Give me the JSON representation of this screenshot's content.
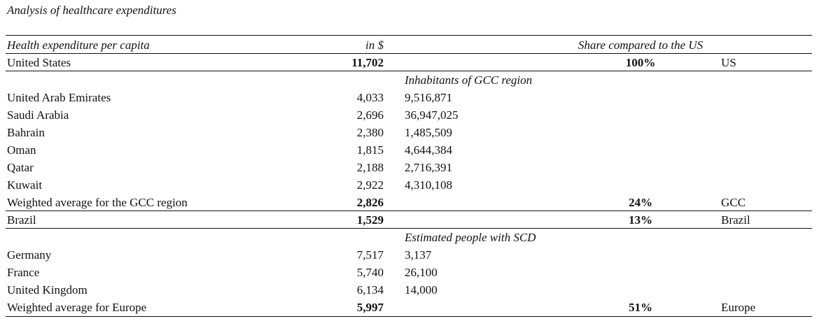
{
  "doc_title": "Analysis of healthcare expenditures",
  "header": {
    "col1": "Health expenditure per capita",
    "col2": "in $",
    "col4": "Share compared to the US"
  },
  "us": {
    "country": "United States",
    "value": "11,702",
    "share": "100%",
    "region": "US"
  },
  "gcc": {
    "subheader": "Inhabitants of GCC region",
    "rows": [
      {
        "country": "United Arab Emirates",
        "value": "4,033",
        "extra": "9,516,871"
      },
      {
        "country": "Saudi Arabia",
        "value": "2,696",
        "extra": "36,947,025"
      },
      {
        "country": "Bahrain",
        "value": "2,380",
        "extra": "1,485,509"
      },
      {
        "country": "Oman",
        "value": "1,815",
        "extra": "4,644,384"
      },
      {
        "country": "Qatar",
        "value": "2,188",
        "extra": "2,716,391"
      },
      {
        "country": "Kuwait",
        "value": "2,922",
        "extra": "4,310,108"
      }
    ],
    "avg": {
      "country": "Weighted average for the GCC region",
      "value": "2,826",
      "share": "24%",
      "region": "GCC"
    }
  },
  "brazil": {
    "country": "Brazil",
    "value": "1,529",
    "share": "13%",
    "region": "Brazil"
  },
  "europe": {
    "subheader": "Estimated people with SCD",
    "rows": [
      {
        "country": "Germany",
        "value": "7,517",
        "extra": "3,137"
      },
      {
        "country": "France",
        "value": "5,740",
        "extra": "26,100"
      },
      {
        "country": "United Kingdom",
        "value": "6,134",
        "extra": "14,000"
      }
    ],
    "avg": {
      "country": "Weighted average for Europe",
      "value": "5,997",
      "share": "51%",
      "region": "Europe"
    }
  }
}
